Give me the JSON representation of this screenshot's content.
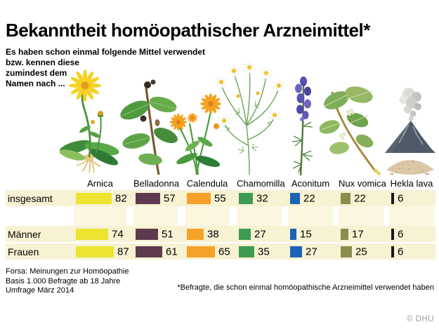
{
  "title": "Bekanntheit homöopathischer Arzneimittel*",
  "subtitle": {
    "line1": "Es haben schon einmal folgende Mittel verwendet",
    "line2": "bzw. kennen diese",
    "line3": "zumindest dem",
    "line4": "Namen nach ..."
  },
  "chart_data": {
    "type": "bar",
    "orientation": "horizontal",
    "unit": "percent",
    "value_range": [
      0,
      100
    ],
    "categories": [
      "Arnica",
      "Belladonna",
      "Calendula",
      "Chamomilla",
      "Aconitum",
      "Nux vomica",
      "Hekla lava"
    ],
    "category_colors": [
      "#ece431",
      "#5f3a4e",
      "#f6a229",
      "#3f9b51",
      "#1b64b5",
      "#8b8d4d",
      "#1a1713"
    ],
    "series": [
      {
        "name": "insgesamt",
        "values": [
          82,
          57,
          55,
          32,
          22,
          22,
          6
        ]
      },
      {
        "name": "Männer",
        "values": [
          74,
          51,
          38,
          27,
          15,
          17,
          6
        ]
      },
      {
        "name": "Frauen",
        "values": [
          87,
          61,
          65,
          35,
          27,
          25,
          6
        ]
      }
    ],
    "legend_position": "none",
    "grid": false
  },
  "plants": [
    {
      "label": "Arnica",
      "icon": "arnica-plant-icon"
    },
    {
      "label": "Belladonna",
      "icon": "belladonna-plant-icon"
    },
    {
      "label": "Calendula",
      "icon": "calendula-plant-icon"
    },
    {
      "label": "Chamomilla",
      "icon": "chamomilla-plant-icon"
    },
    {
      "label": "Aconitum",
      "icon": "aconitum-plant-icon"
    },
    {
      "label": "Nux vomica",
      "icon": "nux-vomica-plant-icon"
    },
    {
      "label": "Hekla lava",
      "icon": "hekla-lava-volcano-icon"
    }
  ],
  "footer": {
    "source_line1": "Forsa: Meinungen zur Homöopathie",
    "source_line2": "Basis 1.000 Befragte ab 18 Jahre",
    "source_line3": "Umfrage März 2014",
    "footnote": "*Befragte, die schon einmal homöopathische Arzneimittel verwendet haben",
    "copyright": "© DHU"
  },
  "colors": {
    "row_background": "#f7f2d3",
    "column_band_background": "#faf6e0",
    "copyright_gray": "#9b9fa3"
  }
}
